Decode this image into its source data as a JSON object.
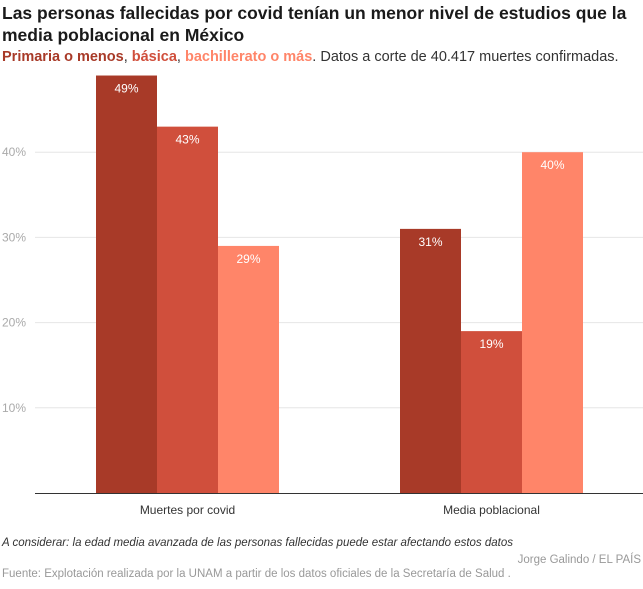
{
  "title": "Las personas fallecidas por covid tenían un menor nivel de estudios que la media poblacional en México",
  "subtitle": {
    "series1": "Primaria o menos",
    "sep1": ", ",
    "series2": "básica",
    "sep2": ", ",
    "series3": "bachillerato o más",
    "rest": ". Datos a corte de 40.417 muertes confirmadas."
  },
  "note": "A considerar: la edad media avanzada de las personas fallecidas puede estar afectando estos datos",
  "credit": "Jorge Galindo / EL PAÍS",
  "source": "Fuente: Explotación realizada por la UNAM a partir de los datos oficiales de la Secretaría de Salud .",
  "colors": {
    "primaria": "#a83a28",
    "basica": "#d04f3c",
    "bachillerato": "#ff8569",
    "grid": "#e6e6e6",
    "axis_text": "#aaaaaa"
  },
  "chart_data": {
    "type": "bar",
    "categories": [
      "Muertes por covid",
      "Media poblacional"
    ],
    "series": [
      {
        "name": "Primaria o menos",
        "values": [
          49,
          31
        ],
        "labels": [
          "49%",
          "31%"
        ]
      },
      {
        "name": "básica",
        "values": [
          43,
          19
        ],
        "labels": [
          "43%",
          "19%"
        ]
      },
      {
        "name": "bachillerato o más",
        "values": [
          29,
          40
        ],
        "labels": [
          "29%",
          "40%"
        ]
      }
    ],
    "ylim": [
      0,
      50
    ],
    "yticks": [
      10,
      20,
      30,
      40
    ],
    "ytick_labels": [
      "10%",
      "20%",
      "30%",
      "40%"
    ],
    "grid": true,
    "xlabel": "",
    "ylabel": ""
  }
}
